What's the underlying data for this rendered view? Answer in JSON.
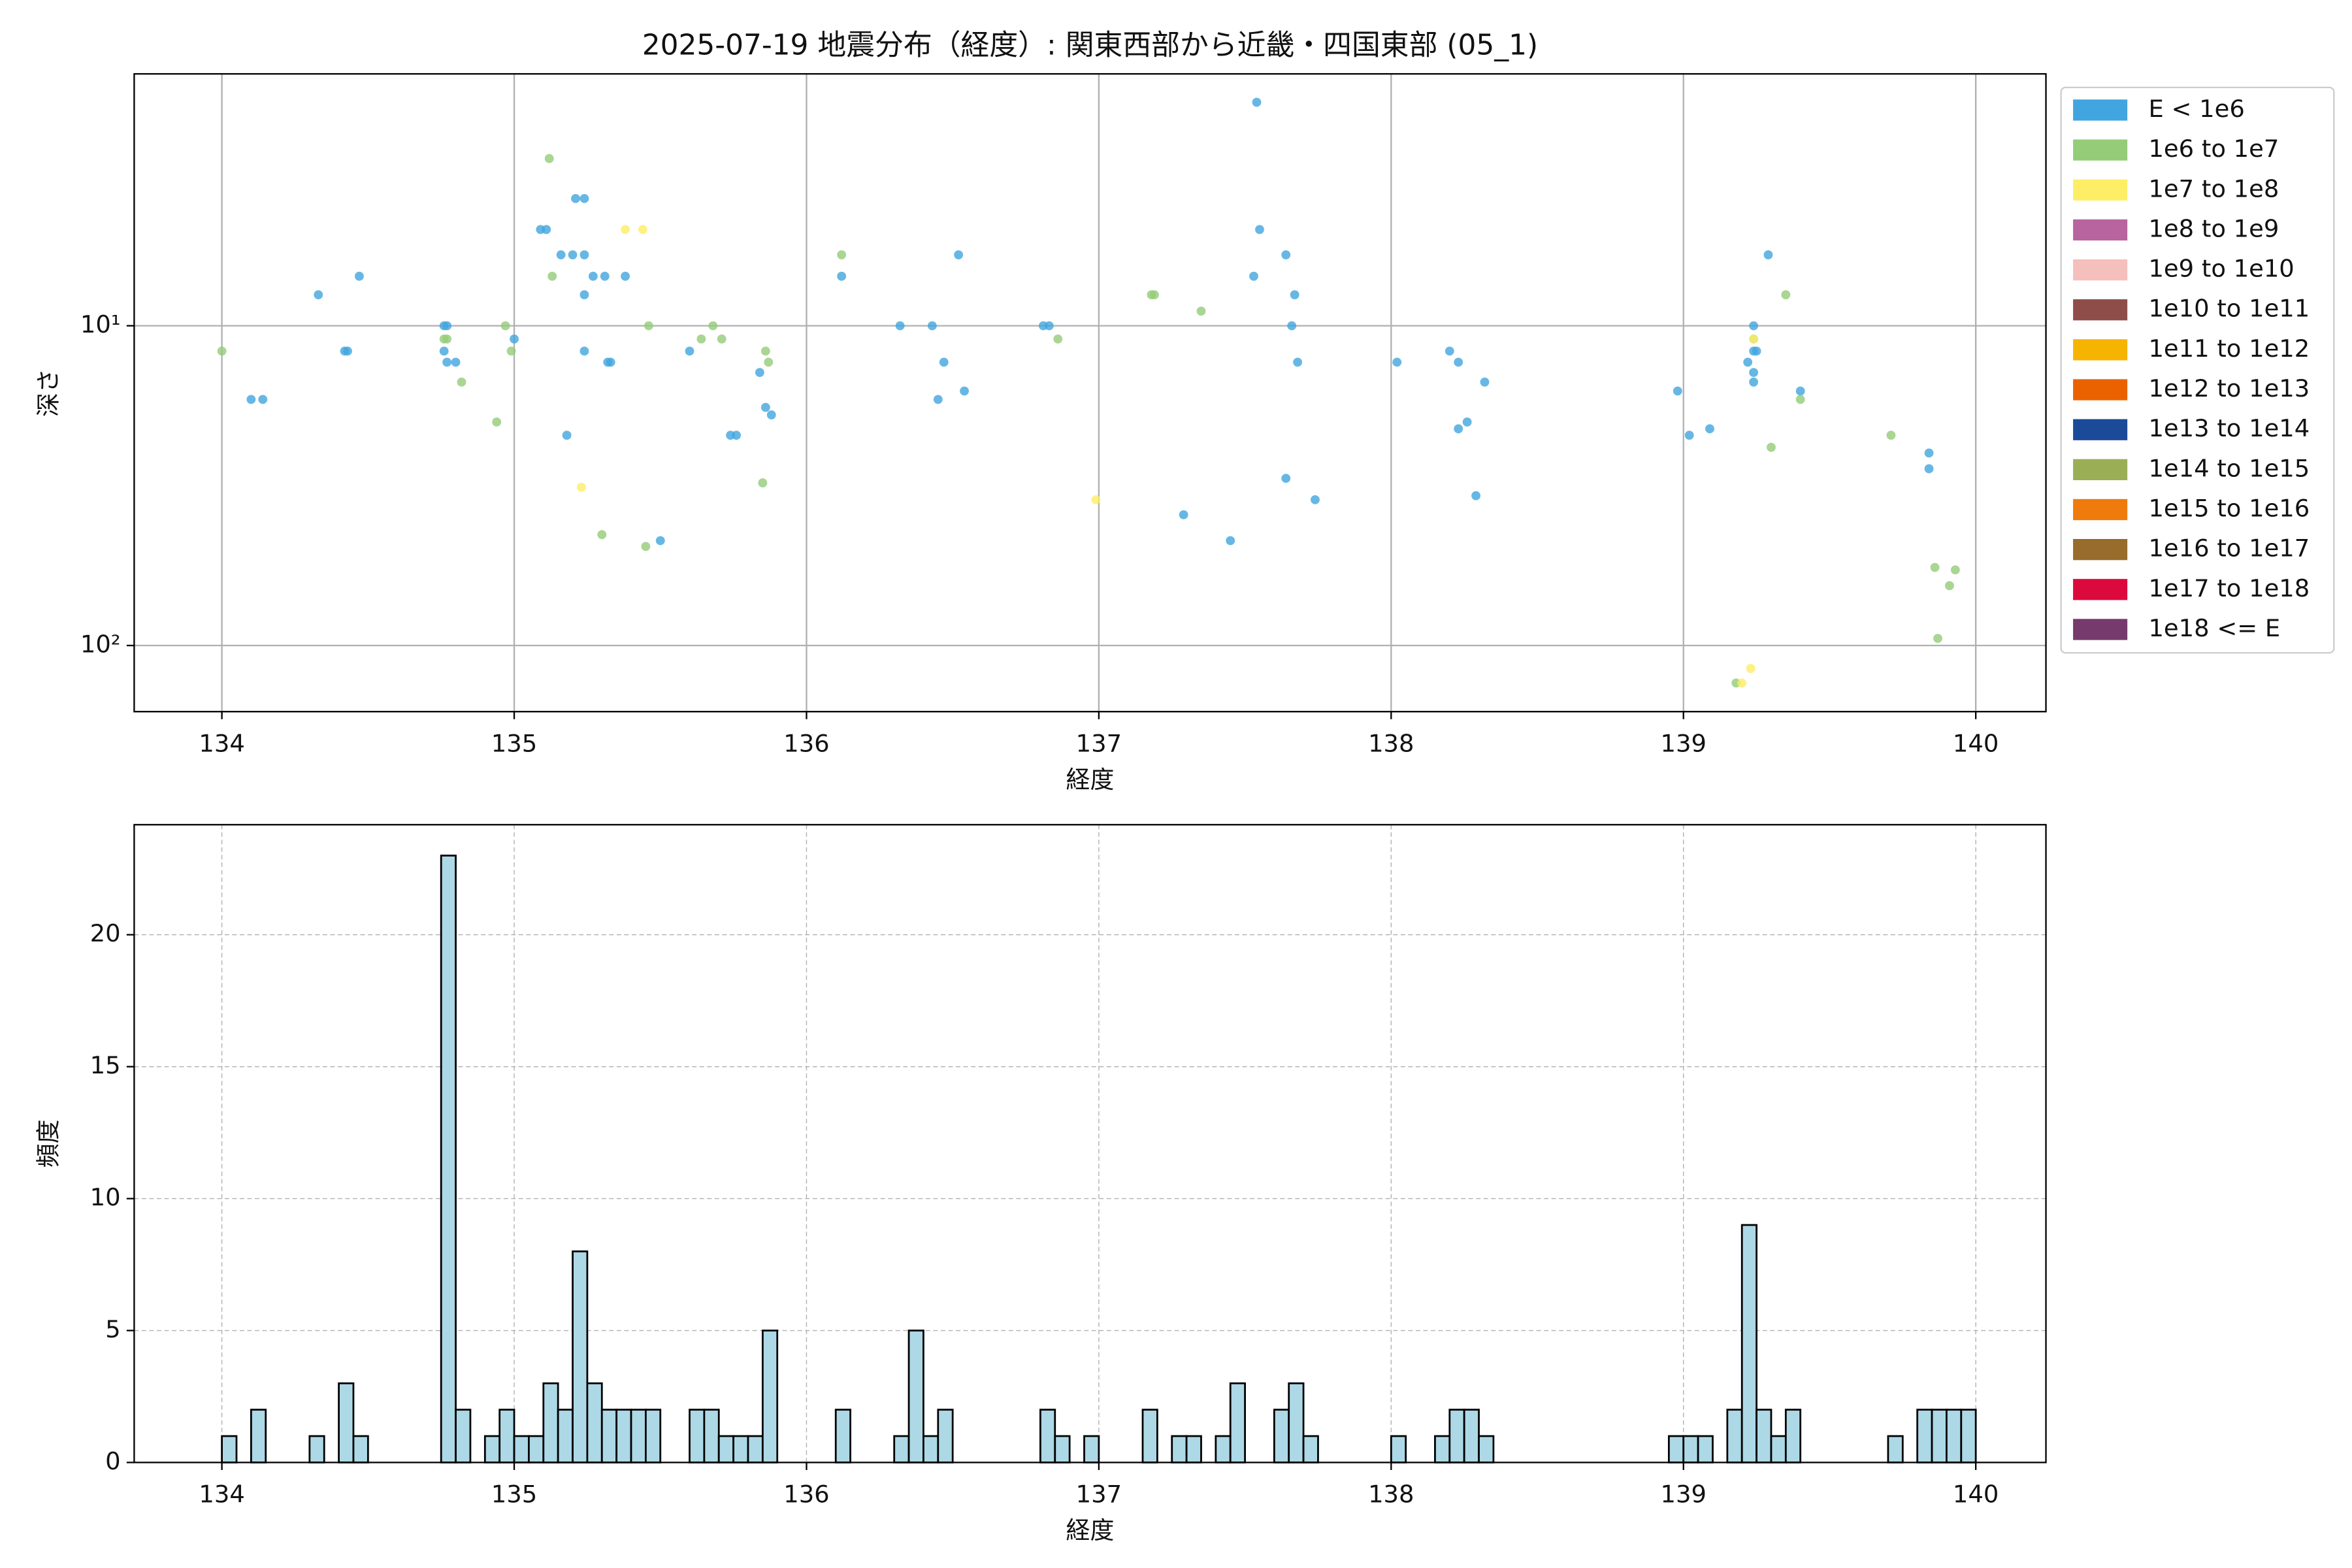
{
  "chart_data": [
    {
      "type": "scatter",
      "title": "2025-07-19 地震分布（経度）: 関東西部から近畿・四国東部 (05_1)",
      "xlabel": "経度",
      "ylabel": "深さ",
      "yscale": "log",
      "grid": true,
      "xlim": [
        133.7,
        140.24
      ],
      "xticks": [
        134,
        135,
        136,
        137,
        138,
        139,
        140
      ],
      "ylim": [
        161,
        1.63
      ],
      "yticks": [
        {
          "value": 10,
          "label": "10¹"
        },
        {
          "value": 100,
          "label": "10²"
        }
      ],
      "legend": "outside right",
      "series": [
        {
          "name": "E < 1e6",
          "color": "#41a5df",
          "x": [
            134.33,
            134.1,
            134.14,
            134.42,
            134.43,
            134.47,
            134.76,
            134.77,
            134.76,
            134.77,
            134.8,
            135.0,
            135.09,
            135.11,
            135.16,
            135.2,
            135.24,
            135.21,
            135.24,
            135.24,
            135.24,
            135.18,
            135.27,
            135.31,
            135.32,
            135.33,
            135.38,
            135.5,
            135.6,
            135.74,
            135.76,
            135.84,
            135.86,
            135.88,
            136.12,
            136.32,
            136.43,
            136.47,
            136.45,
            136.52,
            136.54,
            136.81,
            136.83,
            137.29,
            137.45,
            137.54,
            137.53,
            137.55,
            137.64,
            137.66,
            137.67,
            137.68,
            137.64,
            137.74,
            138.02,
            138.2,
            138.23,
            138.26,
            138.23,
            138.32,
            138.29,
            138.98,
            139.02,
            139.09,
            139.24,
            139.22,
            139.24,
            139.24,
            139.24,
            139.25,
            139.29,
            139.4,
            139.84,
            139.84
          ],
          "values": [
            8,
            17,
            17,
            12,
            12,
            7,
            10,
            10,
            12,
            13,
            13,
            11,
            5,
            5,
            6,
            6,
            6,
            4,
            4,
            8,
            12,
            22,
            7,
            7,
            13,
            13,
            7,
            47,
            12,
            22,
            22,
            14,
            18,
            19,
            7,
            10,
            10,
            13,
            17,
            6,
            16,
            10,
            10,
            39,
            47,
            2,
            7,
            5,
            6,
            10,
            8,
            13,
            30,
            35,
            13,
            12,
            13,
            20,
            21,
            15,
            34,
            16,
            22,
            21,
            10,
            13,
            14,
            15,
            12,
            12,
            6,
            16,
            25,
            28
          ]
        },
        {
          "name": "1e6 to 1e7",
          "color": "#94cc78",
          "x": [
            134.0,
            134.76,
            134.77,
            134.82,
            134.94,
            134.97,
            134.99,
            135.12,
            135.13,
            135.3,
            135.45,
            135.46,
            135.64,
            135.68,
            135.71,
            135.86,
            135.87,
            135.85,
            136.12,
            136.86,
            137.18,
            137.19,
            137.35,
            139.24,
            139.3,
            139.35,
            139.4,
            139.71,
            139.86,
            139.91,
            139.93,
            139.87,
            139.18
          ],
          "values": [
            12,
            11,
            11,
            15,
            20,
            10,
            12,
            3,
            7,
            45,
            49,
            10,
            11,
            10,
            11,
            12,
            13,
            31,
            6,
            11,
            8,
            8,
            9,
            11,
            24,
            8,
            17,
            22,
            57,
            65,
            58,
            95,
            131
          ]
        },
        {
          "name": "1e7 to 1e8",
          "color": "#fdee65",
          "x": [
            135.23,
            135.38,
            135.44,
            136.99,
            139.2,
            139.23,
            139.24
          ],
          "values": [
            32,
            5,
            5,
            35,
            131,
            118,
            11
          ]
        },
        {
          "name": "1e8 to 1e9",
          "color": "#b7649f",
          "x": [],
          "values": []
        },
        {
          "name": "1e9 to 1e10",
          "color": "#f5bfbb",
          "x": [],
          "values": []
        },
        {
          "name": "1e10 to 1e11",
          "color": "#8f4d4a",
          "x": [],
          "values": []
        },
        {
          "name": "1e11 to 1e12",
          "color": "#f6b300",
          "x": [],
          "values": []
        },
        {
          "name": "1e12 to 1e13",
          "color": "#ea6200",
          "x": [],
          "values": []
        },
        {
          "name": "1e13 to 1e14",
          "color": "#1b4a98",
          "x": [],
          "values": []
        },
        {
          "name": "1e14 to 1e15",
          "color": "#9aaf55",
          "x": [],
          "values": []
        },
        {
          "name": "1e15 to 1e16",
          "color": "#ef7b0c",
          "x": [],
          "values": []
        },
        {
          "name": "1e16 to 1e17",
          "color": "#976c2c",
          "x": [],
          "values": []
        },
        {
          "name": "1e17 to 1e18",
          "color": "#dc0a3c",
          "x": [],
          "values": []
        },
        {
          "name": "1e18 <= E",
          "color": "#773a6c",
          "x": [],
          "values": []
        }
      ]
    },
    {
      "type": "histogram",
      "xlabel": "経度",
      "ylabel": "頻度",
      "grid": true,
      "color": "#add8e6",
      "xlim": [
        133.7,
        140.24
      ],
      "xticks": [
        134,
        135,
        136,
        137,
        138,
        139,
        140
      ],
      "ylim": [
        0,
        24.17
      ],
      "yticks": [
        0,
        5,
        10,
        15,
        20
      ],
      "bins": [
        134,
        134.05,
        134.1,
        134.15,
        134.2,
        134.25,
        134.3,
        134.35,
        134.4,
        134.45,
        134.5,
        134.55,
        134.6,
        134.65,
        134.7,
        134.75,
        134.8,
        134.85,
        134.9,
        134.95,
        135,
        135.05,
        135.1,
        135.15,
        135.2,
        135.25,
        135.3,
        135.35,
        135.4,
        135.45,
        135.5,
        135.55,
        135.6,
        135.65,
        135.7,
        135.75,
        135.8,
        135.85,
        135.9,
        135.95,
        136,
        136.05,
        136.1,
        136.15,
        136.2,
        136.25,
        136.3,
        136.35,
        136.4,
        136.45,
        136.5,
        136.55,
        136.6,
        136.65,
        136.7,
        136.75,
        136.8,
        136.85,
        136.9,
        136.95,
        137,
        137.05,
        137.1,
        137.15,
        137.2,
        137.25,
        137.3,
        137.35,
        137.4,
        137.45,
        137.5,
        137.55,
        137.6,
        137.65,
        137.7,
        137.75,
        137.8,
        137.85,
        137.9,
        137.95,
        138,
        138.05,
        138.1,
        138.15,
        138.2,
        138.25,
        138.3,
        138.35,
        138.4,
        138.45,
        138.5,
        138.55,
        138.6,
        138.65,
        138.7,
        138.75,
        138.8,
        138.85,
        138.9,
        138.95,
        139,
        139.05,
        139.1,
        139.15,
        139.2,
        139.25,
        139.3,
        139.35,
        139.4,
        139.45,
        139.5,
        139.55,
        139.6,
        139.65,
        139.7,
        139.75,
        139.8,
        139.85,
        139.9,
        139.95,
        140
      ],
      "values": [
        1,
        0,
        2,
        0,
        0,
        0,
        1,
        0,
        3,
        1,
        0,
        0,
        0,
        0,
        0,
        23,
        2,
        0,
        1,
        2,
        1,
        1,
        3,
        2,
        8,
        3,
        2,
        2,
        2,
        2,
        0,
        0,
        2,
        2,
        1,
        1,
        1,
        5,
        0,
        0,
        0,
        0,
        2,
        0,
        0,
        0,
        1,
        5,
        1,
        2,
        0,
        0,
        0,
        0,
        0,
        0,
        2,
        1,
        0,
        1,
        0,
        0,
        0,
        2,
        0,
        1,
        1,
        0,
        1,
        3,
        0,
        0,
        2,
        3,
        1,
        0,
        0,
        0,
        0,
        0,
        1,
        0,
        0,
        1,
        2,
        2,
        1,
        0,
        0,
        0,
        0,
        0,
        0,
        0,
        0,
        0,
        0,
        0,
        0,
        1,
        1,
        1,
        0,
        2,
        9,
        2,
        1,
        2,
        0,
        0,
        0,
        0,
        0,
        0,
        1,
        0,
        2,
        2,
        2,
        2
      ]
    }
  ]
}
